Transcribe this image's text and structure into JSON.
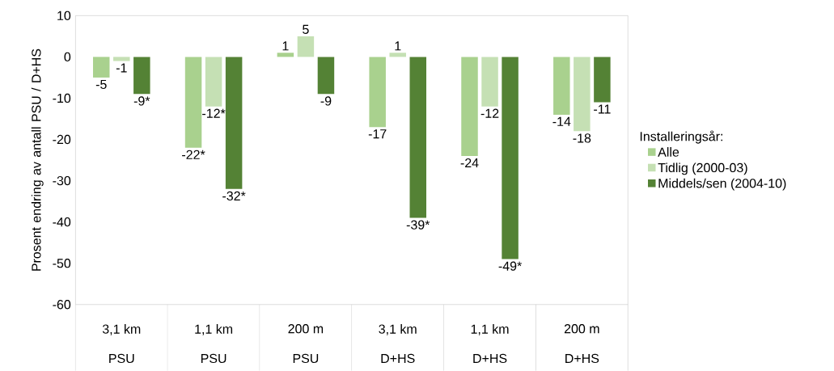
{
  "chart_data": {
    "type": "bar",
    "ylabel": "Prosent endring av antall PSU / D+HS",
    "legend_title": "Installeringsår:",
    "legend": "right",
    "categories": [
      "3,1 km",
      "1,1 km",
      "200 m",
      "3,1 km",
      "1,1 km",
      "200 m"
    ],
    "annotations": [
      "PSU",
      "PSU",
      "PSU",
      "D+HS",
      "D+HS",
      "D+HS"
    ],
    "ylim": [
      -60,
      10
    ],
    "yticks": [
      -60,
      -50,
      -40,
      -30,
      -20,
      -10,
      0,
      10
    ],
    "series": [
      {
        "name": "Alle",
        "color": "#a9d18e",
        "values": [
          -5,
          -22,
          1,
          -17,
          -24,
          -14
        ],
        "value_labels": [
          "-5",
          "-22*",
          "1",
          "-17",
          "-24",
          "-14"
        ]
      },
      {
        "name": "Tidlig (2000-03)",
        "color": "#c5e0b4",
        "values": [
          -1,
          -12,
          5,
          1,
          -12,
          -18
        ],
        "value_labels": [
          "-1",
          "-12*",
          "5",
          "1",
          "-12",
          "-18"
        ]
      },
      {
        "name": "Middels/sen (2004-10)",
        "color": "#548235",
        "values": [
          -9,
          -32,
          -9,
          -39,
          -49,
          -11
        ],
        "value_labels": [
          "-9*",
          "-32*",
          "-9",
          "-39*",
          "-49*",
          "-11"
        ]
      }
    ]
  }
}
